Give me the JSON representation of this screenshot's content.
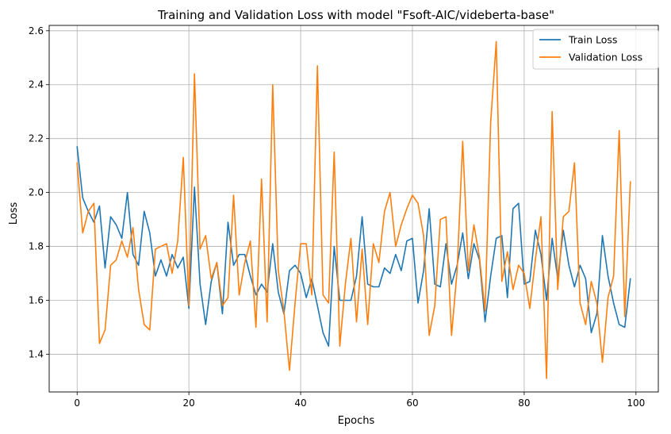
{
  "chart_data": {
    "type": "line",
    "title": "Training and Validation Loss with model \"Fsoft-AIC/videberta-base\"",
    "xlabel": "Epochs",
    "ylabel": "Loss",
    "xlim": [
      -5,
      104
    ],
    "ylim": [
      1.26,
      2.62
    ],
    "xticks": [
      0,
      20,
      40,
      60,
      80,
      100
    ],
    "yticks": [
      1.4,
      1.6,
      1.8,
      2.0,
      2.2,
      2.4,
      2.6
    ],
    "grid": true,
    "legend_position": "top-right",
    "series": [
      {
        "name": "Train Loss",
        "color": "#1f77b4",
        "values": [
          2.17,
          1.98,
          1.93,
          1.89,
          1.95,
          1.72,
          1.91,
          1.88,
          1.83,
          2.0,
          1.77,
          1.73,
          1.93,
          1.85,
          1.69,
          1.75,
          1.69,
          1.77,
          1.72,
          1.76,
          1.57,
          2.02,
          1.66,
          1.51,
          1.67,
          1.74,
          1.55,
          1.89,
          1.73,
          1.77,
          1.77,
          1.69,
          1.62,
          1.66,
          1.63,
          1.81,
          1.63,
          1.55,
          1.71,
          1.73,
          1.7,
          1.61,
          1.68,
          1.58,
          1.48,
          1.43,
          1.8,
          1.6,
          1.6,
          1.6,
          1.69,
          1.91,
          1.66,
          1.65,
          1.65,
          1.72,
          1.7,
          1.77,
          1.71,
          1.82,
          1.83,
          1.59,
          1.71,
          1.94,
          1.66,
          1.65,
          1.81,
          1.66,
          1.73,
          1.85,
          1.68,
          1.81,
          1.75,
          1.52,
          1.69,
          1.83,
          1.84,
          1.61,
          1.94,
          1.96,
          1.66,
          1.67,
          1.86,
          1.77,
          1.6,
          1.83,
          1.68,
          1.86,
          1.73,
          1.65,
          1.73,
          1.68,
          1.48,
          1.55,
          1.84,
          1.69,
          1.59,
          1.51,
          1.5,
          1.68
        ]
      },
      {
        "name": "Validation Loss",
        "color": "#ff7f0e",
        "values": [
          2.11,
          1.85,
          1.93,
          1.96,
          1.44,
          1.49,
          1.73,
          1.75,
          1.82,
          1.76,
          1.87,
          1.64,
          1.51,
          1.49,
          1.79,
          1.8,
          1.81,
          1.7,
          1.82,
          2.13,
          1.58,
          2.44,
          1.79,
          1.84,
          1.68,
          1.74,
          1.58,
          1.61,
          1.99,
          1.62,
          1.74,
          1.82,
          1.5,
          2.05,
          1.52,
          2.4,
          1.71,
          1.56,
          1.34,
          1.59,
          1.81,
          1.81,
          1.62,
          2.47,
          1.62,
          1.59,
          2.15,
          1.43,
          1.66,
          1.83,
          1.52,
          1.79,
          1.51,
          1.81,
          1.74,
          1.93,
          2.0,
          1.8,
          1.88,
          1.94,
          1.99,
          1.96,
          1.84,
          1.47,
          1.58,
          1.9,
          1.91,
          1.47,
          1.71,
          2.19,
          1.71,
          1.88,
          1.76,
          1.56,
          2.26,
          2.56,
          1.67,
          1.78,
          1.64,
          1.73,
          1.7,
          1.57,
          1.75,
          1.91,
          1.31,
          2.3,
          1.64,
          1.91,
          1.93,
          2.11,
          1.59,
          1.51,
          1.67,
          1.59,
          1.37,
          1.61,
          1.69,
          2.23,
          1.54,
          2.04
        ]
      }
    ]
  }
}
